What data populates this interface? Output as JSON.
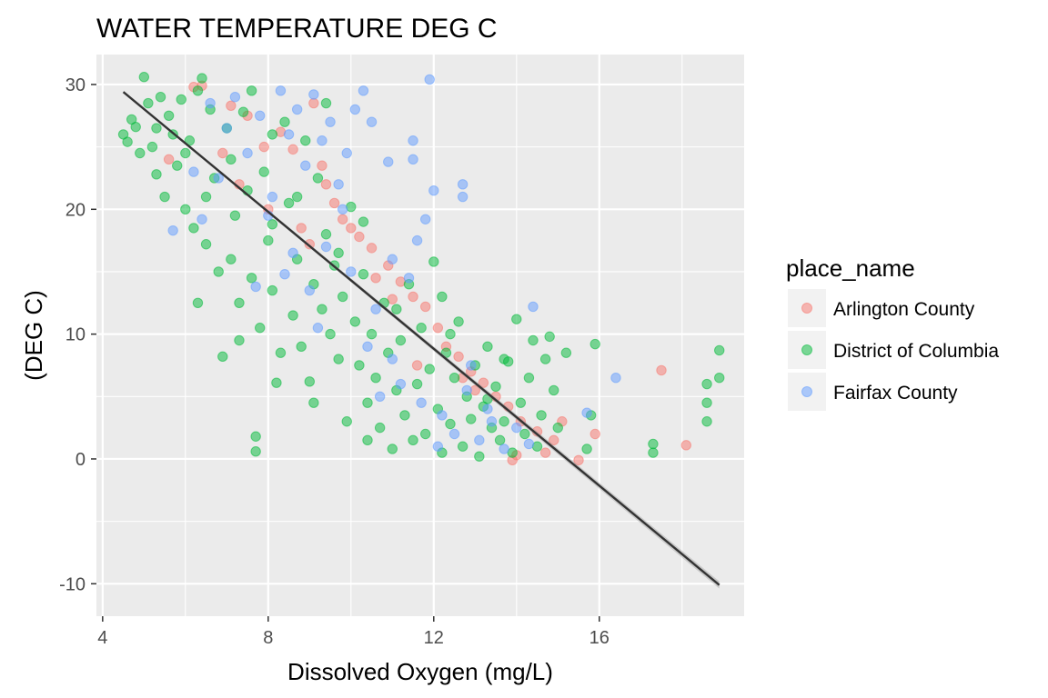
{
  "chart_data": {
    "type": "scatter",
    "title": "WATER TEMPERATURE DEG C",
    "xlabel": "Dissolved Oxygen (mg/L)",
    "ylabel": "(DEG C)",
    "xlim": [
      3.85,
      19.5
    ],
    "ylim": [
      -12.6,
      32.4
    ],
    "x_ticks": [
      4,
      8,
      12,
      16
    ],
    "x_tick_labels": [
      "4",
      "8",
      "12",
      "16"
    ],
    "y_ticks": [
      -10,
      0,
      10,
      20,
      30
    ],
    "y_tick_labels": [
      "-10",
      "0",
      "10",
      "20",
      "30"
    ],
    "grid": true,
    "legend": {
      "title": "place_name",
      "position": "right",
      "entries": [
        "Arlington County",
        "District of Columbia",
        "Fairfax County"
      ]
    },
    "series": [
      {
        "name": "Arlington County",
        "color": "#F8766D",
        "points": [
          [
            6.2,
            29.8
          ],
          [
            6.4,
            29.9
          ],
          [
            7.1,
            28.3
          ],
          [
            7.5,
            27.5
          ],
          [
            7.9,
            25.0
          ],
          [
            8.3,
            26.2
          ],
          [
            8.6,
            24.8
          ],
          [
            9.1,
            28.5
          ],
          [
            9.3,
            23.5
          ],
          [
            9.4,
            22.0
          ],
          [
            9.6,
            20.5
          ],
          [
            9.8,
            19.2
          ],
          [
            10.0,
            18.5
          ],
          [
            10.2,
            17.8
          ],
          [
            10.5,
            16.9
          ],
          [
            10.9,
            15.5
          ],
          [
            11.2,
            14.2
          ],
          [
            11.5,
            13.0
          ],
          [
            11.8,
            12.2
          ],
          [
            12.1,
            10.5
          ],
          [
            12.3,
            9.0
          ],
          [
            12.6,
            8.2
          ],
          [
            12.9,
            7.0
          ],
          [
            13.2,
            6.1
          ],
          [
            13.5,
            5.0
          ],
          [
            13.8,
            4.2
          ],
          [
            14.1,
            3.0
          ],
          [
            14.5,
            2.2
          ],
          [
            14.9,
            1.5
          ],
          [
            15.1,
            3.0
          ],
          [
            15.5,
            -0.1
          ],
          [
            15.9,
            2.0
          ],
          [
            17.5,
            7.1
          ],
          [
            18.1,
            1.1
          ],
          [
            6.9,
            24.5
          ],
          [
            7.3,
            22.0
          ],
          [
            8.0,
            20.0
          ],
          [
            8.8,
            18.5
          ],
          [
            10.6,
            14.5
          ],
          [
            11.0,
            12.8
          ],
          [
            12.7,
            6.5
          ],
          [
            13.0,
            5.5
          ],
          [
            14.0,
            0.3
          ],
          [
            9.0,
            17.2
          ],
          [
            11.6,
            7.5
          ],
          [
            5.6,
            24.0
          ],
          [
            13.9,
            -0.1
          ],
          [
            14.7,
            0.5
          ]
        ]
      },
      {
        "name": "District of Columbia",
        "color": "#00BA38",
        "points": [
          [
            4.5,
            26.0
          ],
          [
            4.6,
            25.4
          ],
          [
            4.7,
            27.2
          ],
          [
            4.8,
            26.6
          ],
          [
            4.9,
            24.5
          ],
          [
            5.0,
            30.6
          ],
          [
            5.1,
            28.5
          ],
          [
            5.2,
            25.0
          ],
          [
            5.3,
            22.8
          ],
          [
            5.4,
            29.0
          ],
          [
            5.5,
            21.0
          ],
          [
            5.6,
            27.5
          ],
          [
            5.7,
            26.0
          ],
          [
            5.8,
            23.5
          ],
          [
            5.9,
            28.8
          ],
          [
            6.0,
            20.0
          ],
          [
            6.1,
            25.5
          ],
          [
            6.2,
            18.5
          ],
          [
            6.3,
            29.5
          ],
          [
            6.4,
            30.5
          ],
          [
            6.5,
            17.2
          ],
          [
            6.6,
            28.0
          ],
          [
            6.7,
            22.5
          ],
          [
            6.8,
            15.0
          ],
          [
            6.9,
            8.2
          ],
          [
            7.0,
            26.5
          ],
          [
            7.1,
            24.0
          ],
          [
            7.2,
            19.5
          ],
          [
            7.3,
            12.5
          ],
          [
            7.4,
            27.8
          ],
          [
            7.5,
            21.5
          ],
          [
            7.6,
            14.5
          ],
          [
            7.7,
            1.8
          ],
          [
            7.7,
            0.6
          ],
          [
            7.8,
            10.5
          ],
          [
            7.9,
            23.0
          ],
          [
            8.0,
            17.5
          ],
          [
            8.1,
            13.5
          ],
          [
            8.2,
            6.1
          ],
          [
            8.3,
            8.5
          ],
          [
            8.4,
            27.0
          ],
          [
            8.5,
            20.5
          ],
          [
            8.6,
            11.5
          ],
          [
            8.7,
            16.0
          ],
          [
            8.8,
            9.0
          ],
          [
            8.9,
            25.5
          ],
          [
            9.0,
            6.2
          ],
          [
            9.1,
            14.0
          ],
          [
            9.2,
            22.5
          ],
          [
            9.3,
            12.0
          ],
          [
            9.4,
            18.0
          ],
          [
            9.5,
            10.0
          ],
          [
            9.6,
            15.5
          ],
          [
            9.7,
            8.0
          ],
          [
            9.8,
            13.0
          ],
          [
            9.9,
            3.0
          ],
          [
            10.0,
            20.2
          ],
          [
            10.1,
            11.0
          ],
          [
            10.2,
            7.5
          ],
          [
            10.3,
            14.8
          ],
          [
            10.4,
            4.5
          ],
          [
            10.5,
            10.0
          ],
          [
            10.6,
            6.5
          ],
          [
            10.7,
            2.5
          ],
          [
            10.8,
            12.5
          ],
          [
            10.9,
            8.5
          ],
          [
            11.0,
            0.8
          ],
          [
            11.1,
            5.5
          ],
          [
            11.2,
            9.5
          ],
          [
            11.3,
            3.5
          ],
          [
            11.4,
            14.0
          ],
          [
            11.5,
            1.5
          ],
          [
            11.6,
            6.0
          ],
          [
            11.7,
            10.5
          ],
          [
            11.8,
            2.0
          ],
          [
            11.9,
            7.2
          ],
          [
            12.0,
            15.8
          ],
          [
            12.1,
            4.0
          ],
          [
            12.2,
            0.5
          ],
          [
            12.3,
            8.5
          ],
          [
            12.4,
            2.8
          ],
          [
            12.5,
            6.5
          ],
          [
            12.6,
            11.0
          ],
          [
            12.7,
            1.0
          ],
          [
            12.8,
            5.0
          ],
          [
            12.9,
            3.2
          ],
          [
            13.0,
            7.5
          ],
          [
            13.1,
            0.2
          ],
          [
            13.2,
            4.2
          ],
          [
            13.3,
            9.0
          ],
          [
            13.4,
            2.5
          ],
          [
            13.5,
            5.8
          ],
          [
            13.6,
            1.5
          ],
          [
            13.7,
            3.0
          ],
          [
            13.8,
            7.8
          ],
          [
            13.9,
            0.5
          ],
          [
            14.0,
            11.2
          ],
          [
            14.1,
            4.5
          ],
          [
            14.2,
            2.0
          ],
          [
            14.3,
            6.5
          ],
          [
            14.4,
            9.5
          ],
          [
            14.5,
            1.0
          ],
          [
            14.6,
            3.5
          ],
          [
            14.7,
            8.0
          ],
          [
            14.8,
            9.8
          ],
          [
            14.9,
            5.5
          ],
          [
            15.0,
            2.5
          ],
          [
            15.2,
            8.5
          ],
          [
            15.8,
            3.5
          ],
          [
            15.9,
            9.2
          ],
          [
            15.7,
            0.8
          ],
          [
            17.3,
            0.5
          ],
          [
            17.3,
            1.2
          ],
          [
            18.6,
            6.0
          ],
          [
            18.6,
            3.0
          ],
          [
            18.6,
            4.5
          ],
          [
            18.9,
            8.7
          ],
          [
            18.9,
            6.5
          ],
          [
            6.5,
            21.0
          ],
          [
            7.1,
            16.0
          ],
          [
            7.6,
            29.5
          ],
          [
            8.1,
            26.0
          ],
          [
            5.3,
            26.5
          ],
          [
            6.0,
            24.5
          ],
          [
            9.4,
            28.5
          ],
          [
            8.7,
            21.0
          ],
          [
            10.3,
            19.0
          ],
          [
            11.1,
            12.0
          ],
          [
            12.2,
            13.0
          ],
          [
            13.3,
            4.8
          ],
          [
            6.3,
            12.5
          ],
          [
            7.3,
            9.5
          ],
          [
            9.1,
            4.5
          ],
          [
            10.4,
            1.5
          ],
          [
            12.4,
            10.0
          ],
          [
            13.7,
            8.0
          ],
          [
            8.1,
            18.8
          ],
          [
            9.7,
            16.5
          ]
        ]
      },
      {
        "name": "Fairfax County",
        "color": "#619CFF",
        "points": [
          [
            5.7,
            18.3
          ],
          [
            6.2,
            23.0
          ],
          [
            6.6,
            28.5
          ],
          [
            6.8,
            22.5
          ],
          [
            7.2,
            29.0
          ],
          [
            7.5,
            24.5
          ],
          [
            7.8,
            27.5
          ],
          [
            8.1,
            21.0
          ],
          [
            8.3,
            29.5
          ],
          [
            8.5,
            26.0
          ],
          [
            8.7,
            28.0
          ],
          [
            8.9,
            23.5
          ],
          [
            9.1,
            29.2
          ],
          [
            9.3,
            25.5
          ],
          [
            9.5,
            27.0
          ],
          [
            9.7,
            22.0
          ],
          [
            9.9,
            24.5
          ],
          [
            10.1,
            28.0
          ],
          [
            10.3,
            29.5
          ],
          [
            10.5,
            27.0
          ],
          [
            10.9,
            23.8
          ],
          [
            11.5,
            25.5
          ],
          [
            11.5,
            24.0
          ],
          [
            11.9,
            30.4
          ],
          [
            12.0,
            21.5
          ],
          [
            12.7,
            22.0
          ],
          [
            12.7,
            21.0
          ],
          [
            11.8,
            19.2
          ],
          [
            11.6,
            17.5
          ],
          [
            11.4,
            14.5
          ],
          [
            11.0,
            16.0
          ],
          [
            10.6,
            12.0
          ],
          [
            10.0,
            15.0
          ],
          [
            9.4,
            17.0
          ],
          [
            9.0,
            13.5
          ],
          [
            8.6,
            16.5
          ],
          [
            7.7,
            13.8
          ],
          [
            8.0,
            19.5
          ],
          [
            9.2,
            10.5
          ],
          [
            10.4,
            9.0
          ],
          [
            11.2,
            6.0
          ],
          [
            11.7,
            4.5
          ],
          [
            12.2,
            3.5
          ],
          [
            12.5,
            2.0
          ],
          [
            12.8,
            5.5
          ],
          [
            13.1,
            1.5
          ],
          [
            13.4,
            3.0
          ],
          [
            13.7,
            0.8
          ],
          [
            14.0,
            2.5
          ],
          [
            14.3,
            1.2
          ],
          [
            14.4,
            12.2
          ],
          [
            15.7,
            3.7
          ],
          [
            16.4,
            6.5
          ],
          [
            6.4,
            19.2
          ],
          [
            7.0,
            26.5
          ],
          [
            12.9,
            7.5
          ],
          [
            13.3,
            4.0
          ],
          [
            11.0,
            8.0
          ],
          [
            10.7,
            5.0
          ],
          [
            12.1,
            1.0
          ],
          [
            9.8,
            20.0
          ],
          [
            8.4,
            14.8
          ]
        ]
      }
    ],
    "trend_line": {
      "color": "#333333",
      "x": [
        4.5,
        18.9
      ],
      "y": [
        29.4,
        -10.1
      ]
    }
  }
}
